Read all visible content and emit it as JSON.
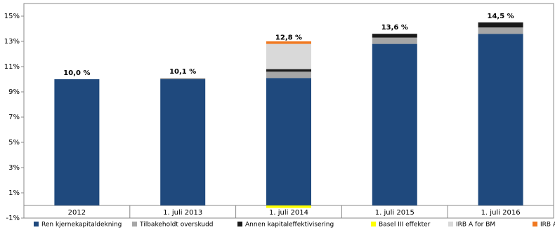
{
  "chart_data": {
    "type": "stacked-bar",
    "categories": [
      "2012",
      "1. juli 2013",
      "1. juli 2014",
      "1. juli 2015",
      "1. juli 2016"
    ],
    "series": [
      {
        "name": "Ren kjernekapitaldekning",
        "color": "#1f497d",
        "values": [
          10.0,
          10.0,
          10.1,
          12.8,
          13.6
        ]
      },
      {
        "name": "Tilbakeholdt overskudd",
        "color": "#a6a6a6",
        "values": [
          0,
          0.1,
          0.5,
          0.5,
          0.5
        ]
      },
      {
        "name": "Annen kapitaleffektivisering",
        "color": "#1a1a1a",
        "values": [
          0,
          0,
          0.2,
          0.3,
          0.4
        ]
      },
      {
        "name": "Basel III effekter",
        "color": "#ffff00",
        "values": [
          0,
          0,
          -0.2,
          0,
          0
        ]
      },
      {
        "name": "IRB A for BM",
        "color": "#d9d9d9",
        "values": [
          0,
          0,
          2.0,
          0,
          0
        ]
      },
      {
        "name": "IRB A for BN Bank",
        "color": "#f07820",
        "values": [
          0,
          0,
          0.2,
          0,
          0
        ]
      }
    ],
    "totals": [
      10.0,
      10.1,
      12.8,
      13.6,
      14.5
    ],
    "total_labels": [
      "10,0 %",
      "10,1 %",
      "12,8 %",
      "13,6 %",
      "14,5 %"
    ],
    "ylim": [
      -1,
      16
    ],
    "yticks": [
      {
        "value": -1,
        "label": "-1%"
      },
      {
        "value": 1,
        "label": "1%"
      },
      {
        "value": 3,
        "label": "3%"
      },
      {
        "value": 5,
        "label": "5%"
      },
      {
        "value": 7,
        "label": "7%"
      },
      {
        "value": 9,
        "label": "9%"
      },
      {
        "value": 11,
        "label": "11%"
      },
      {
        "value": 13,
        "label": "13%"
      },
      {
        "value": 15,
        "label": "15%"
      }
    ],
    "grid": false,
    "legend": "bottom"
  }
}
